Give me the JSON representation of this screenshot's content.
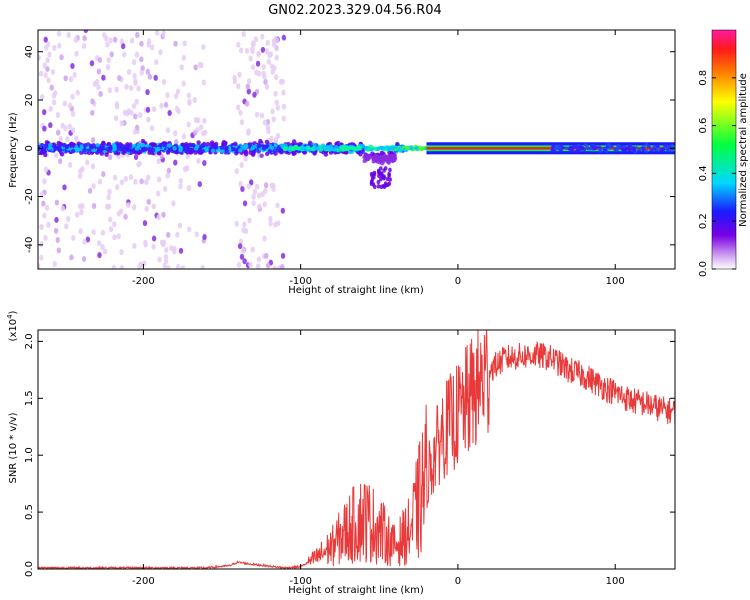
{
  "title": "GN02.2023.329.04.56.R04",
  "colors": {
    "snr_line": "#e83a3a",
    "axis": "#000000"
  },
  "chart_data": [
    {
      "type": "heatmap",
      "name": "spectrogram",
      "xlabel": "Height of straight line (km)",
      "ylabel": "Frequency (Hz)",
      "xlim": [
        -267,
        138
      ],
      "ylim": [
        -50,
        49
      ],
      "x_ticks": [
        -200,
        -100,
        0,
        100
      ],
      "y_ticks": [
        -40,
        -20,
        0,
        20,
        40
      ],
      "colorbar": {
        "label": "Normalized spectral amplitude",
        "range": [
          0,
          1
        ],
        "ticks": [
          0.0,
          0.2,
          0.4,
          0.6,
          0.8
        ],
        "colormap": "rainbow (white-purple-blue-cyan-green-yellow-orange-red-magenta)"
      },
      "features": {
        "noise_band_center_hz": 0,
        "noise_x_range_km": [
          -267,
          -110
        ],
        "strong_line_x_range_km": [
          -40,
          138
        ],
        "strong_line_frequency_hz": 0
      }
    },
    {
      "type": "line",
      "name": "snr",
      "xlabel": "Height of straight line (km)",
      "ylabel": "SNR (10 * v/v)",
      "y_scale_label": "(x10^4)",
      "xlim": [
        -267,
        138
      ],
      "ylim": [
        0,
        2.1
      ],
      "x_ticks": [
        -200,
        -100,
        0,
        100
      ],
      "y_ticks": [
        0.0,
        0.5,
        1.0,
        1.5,
        2.0
      ],
      "series": [
        {
          "x": [
            -267,
            -240,
            -200,
            -160,
            -145,
            -140,
            -130,
            -110,
            -100,
            -90,
            -80,
            -70,
            -60,
            -50,
            -40,
            -30,
            -20,
            -10,
            0,
            10,
            20,
            30,
            40,
            50,
            60,
            70,
            80,
            90,
            100,
            110,
            120,
            130,
            138
          ],
          "values": [
            0.01,
            0.01,
            0.01,
            0.01,
            0.03,
            0.06,
            0.04,
            0.01,
            0.02,
            0.1,
            0.2,
            0.35,
            0.45,
            0.35,
            0.2,
            0.35,
            0.8,
            1.2,
            1.35,
            1.55,
            1.75,
            1.85,
            1.87,
            1.88,
            1.85,
            1.75,
            1.7,
            1.62,
            1.55,
            1.48,
            1.45,
            1.4,
            1.38
          ]
        }
      ]
    }
  ]
}
